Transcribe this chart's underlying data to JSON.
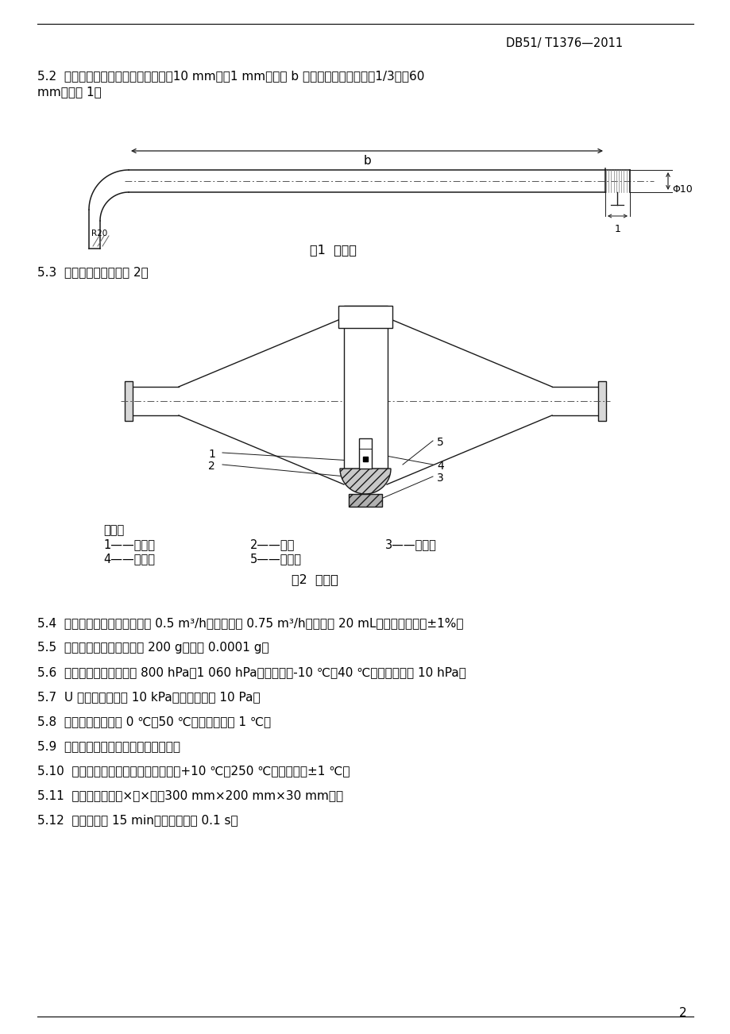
{
  "header": "DB51/ T1376—2011",
  "page_num": "2",
  "bg_color": "#ffffff",
  "section_52_line1": "5.2  取样管：取样管为不锈锄管，外径10 mm，壁1 mm，长度 b 为取样位置管道内径的1/3再加60",
  "section_52_line2": "mm，见图 1。",
  "fig1_caption": "图1  取样管",
  "section_53": "5.3  取样器：取样器见图 2。",
  "fig2_caption": "图2  取样器",
  "legend_title": "说明：",
  "legend_row1_col1": "1——进气端",
  "legend_row1_col2": "2——垫圈",
  "legend_row1_col3": "3——衬网圈",
  "legend_row2_col1": "4——钓丝网",
  "legend_row2_col2": "5——出气端",
  "section_54": "5.4  湿式气体流量计：公称流量 0.5 m³/h，最大流量 0.75 m³/h，分度值 20 mL，公称流量误差±1%。",
  "section_55": "5.5  电子分析天平：最大称量 200 g，感量 0.0001 g。",
  "section_56": "5.6  空盒气压表：测量范围 800 hPa～1 060 hPa，温度范围-10 ℃～40 ℃，最小分度值 10 hPa。",
  "section_57": "5.7  U 型压力计：量程 10 kPa，最小分度值 10 Pa。",
  "section_58": "5.8  温度计：温度范围 0 ℃～50 ℃，最小分度值 1 ℃。",
  "section_59": "5.9  干燥器皿：干燥器皿内装变色硒胶。",
  "section_510": "5.10  电热恒温干燥筘：温度范围为室温+10 ℃～250 ℃，温度波动±1 ℃。",
  "section_511": "5.11  金属干燥盘：长×宽×高（300 mm×200 mm×30 mm）。",
  "section_512": "5.12  秒表：量程 15 min，最小分度值 0.1 s。"
}
